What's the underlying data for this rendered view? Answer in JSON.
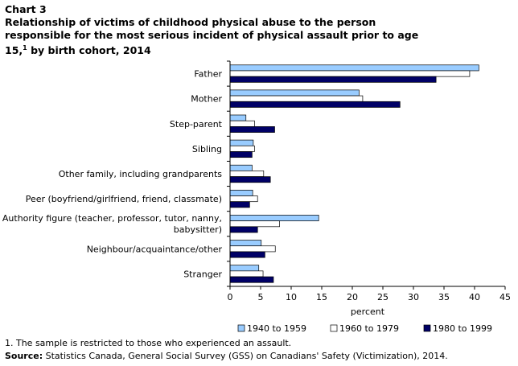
{
  "header": {
    "chart_label": "Chart 3",
    "title": "Relationship of victims of childhood physical abuse to the person responsible for the most serious incident of physical assault prior to age 15,",
    "title_footnote_ref": "1",
    "title_suffix": " by birth cohort, 2014"
  },
  "footer": {
    "note": "1. The sample is restricted to those who experienced an assault.",
    "source_label": "Source:",
    "source_text": " Statistics Canada, General Social Survey (GSS) on Canadians' Safety (Victimization), 2014."
  },
  "chart_data": {
    "type": "bar",
    "orientation": "horizontal",
    "categories": [
      [
        "Father"
      ],
      [
        "Mother"
      ],
      [
        "Step-parent"
      ],
      [
        "Sibling"
      ],
      [
        "Other family, including grandparents"
      ],
      [
        "Peer (boyfriend/girlfriend, friend, classmate)"
      ],
      [
        "Authority figure (teacher, professor, tutor, nanny,",
        "babysitter)"
      ],
      [
        "Neighbour/acquaintance/other"
      ],
      [
        "Stranger"
      ]
    ],
    "series": [
      {
        "name": "1940 to 1959",
        "color": "#99ccff",
        "values": [
          40.7,
          21.1,
          2.6,
          3.8,
          3.6,
          3.7,
          14.5,
          5.1,
          4.7
        ]
      },
      {
        "name": "1960 to 1979",
        "color": "#ffffff",
        "values": [
          39.2,
          21.7,
          4.0,
          4.0,
          5.5,
          4.5,
          8.1,
          7.4,
          5.4
        ]
      },
      {
        "name": "1980 to 1999",
        "color": "#000066",
        "values": [
          33.7,
          27.8,
          7.3,
          3.6,
          6.6,
          3.2,
          4.5,
          5.7,
          7.1
        ]
      }
    ],
    "xlabel": "percent",
    "xlim": [
      0,
      45
    ],
    "xticks": [
      0,
      5,
      10,
      15,
      20,
      25,
      30,
      35,
      40,
      45
    ],
    "grid": false,
    "legend_position": "bottom"
  }
}
